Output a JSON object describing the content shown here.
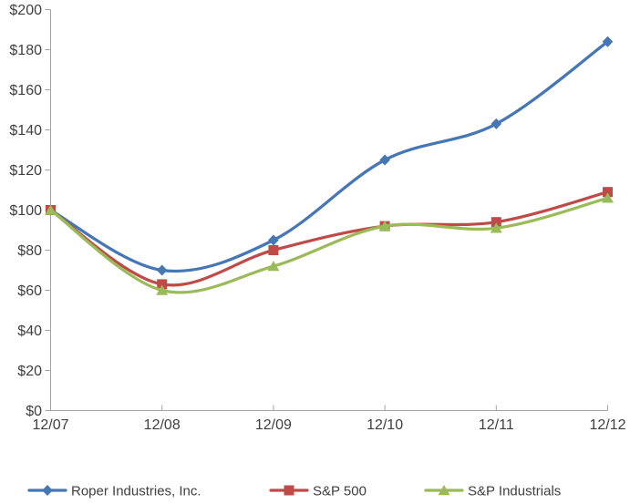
{
  "chart_data": {
    "type": "line",
    "title": "",
    "line_style": "smooth",
    "grid": false,
    "background": "#FFFFFF",
    "axis_color": "#A3A3A3",
    "text_color": "#3F3F3F",
    "categories": [
      "12/07",
      "12/08",
      "12/09",
      "12/10",
      "12/11",
      "12/12"
    ],
    "series": [
      {
        "name": "Roper Industries, Inc.",
        "color": "#4576B5",
        "marker": "diamond",
        "values": [
          100,
          70,
          85,
          125,
          143,
          184
        ]
      },
      {
        "name": "S&P 500",
        "color": "#BE4B48",
        "marker": "square",
        "values": [
          100,
          63,
          80,
          92,
          94,
          109
        ]
      },
      {
        "name": "S&P Industrials",
        "color": "#9BBB59",
        "marker": "triangle",
        "values": [
          100,
          60,
          72,
          92,
          91,
          106
        ]
      }
    ],
    "x_axis": {
      "tick_labels": [
        "12/07",
        "12/08",
        "12/09",
        "12/10",
        "12/11",
        "12/12"
      ]
    },
    "y_axis": {
      "min": 0,
      "max": 200,
      "step": 20,
      "prefix": "$",
      "tick_labels": [
        "$0",
        "$20",
        "$40",
        "$60",
        "$80",
        "$100",
        "$120",
        "$140",
        "$160",
        "$180",
        "$200"
      ]
    },
    "legend": {
      "position": "bottom",
      "entries": [
        "Roper Industries, Inc.",
        "S&P 500",
        "S&P Industrials"
      ]
    }
  }
}
